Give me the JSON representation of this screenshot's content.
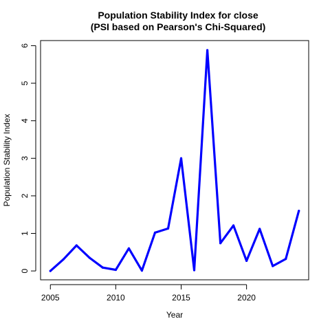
{
  "chart_data": {
    "type": "line",
    "title": "Population Stability Index for close",
    "subtitle": "(PSI based on Pearson's Chi-Squared)",
    "xlabel": "Year",
    "ylabel": "Population Stability Index",
    "xlim": [
      2004.25,
      2024.75
    ],
    "ylim": [
      -0.236,
      6.136
    ],
    "x_ticks": [
      2005,
      2010,
      2015,
      2020
    ],
    "y_ticks": [
      0,
      1,
      2,
      3,
      4,
      5,
      6
    ],
    "grid": false,
    "legend": "none",
    "series": [
      {
        "color": "#0000ff",
        "x": [
          2005,
          2006,
          2007,
          2008,
          2009,
          2010,
          2011,
          2012,
          2013,
          2014,
          2015,
          2016,
          2017,
          2018,
          2019,
          2020,
          2021,
          2022,
          2023,
          2024
        ],
        "values": [
          0.0,
          0.31,
          0.68,
          0.35,
          0.09,
          0.03,
          0.6,
          0.01,
          1.02,
          1.13,
          3.0,
          0.02,
          5.88,
          0.74,
          1.21,
          0.27,
          1.12,
          0.13,
          0.32,
          1.6
        ]
      }
    ]
  }
}
